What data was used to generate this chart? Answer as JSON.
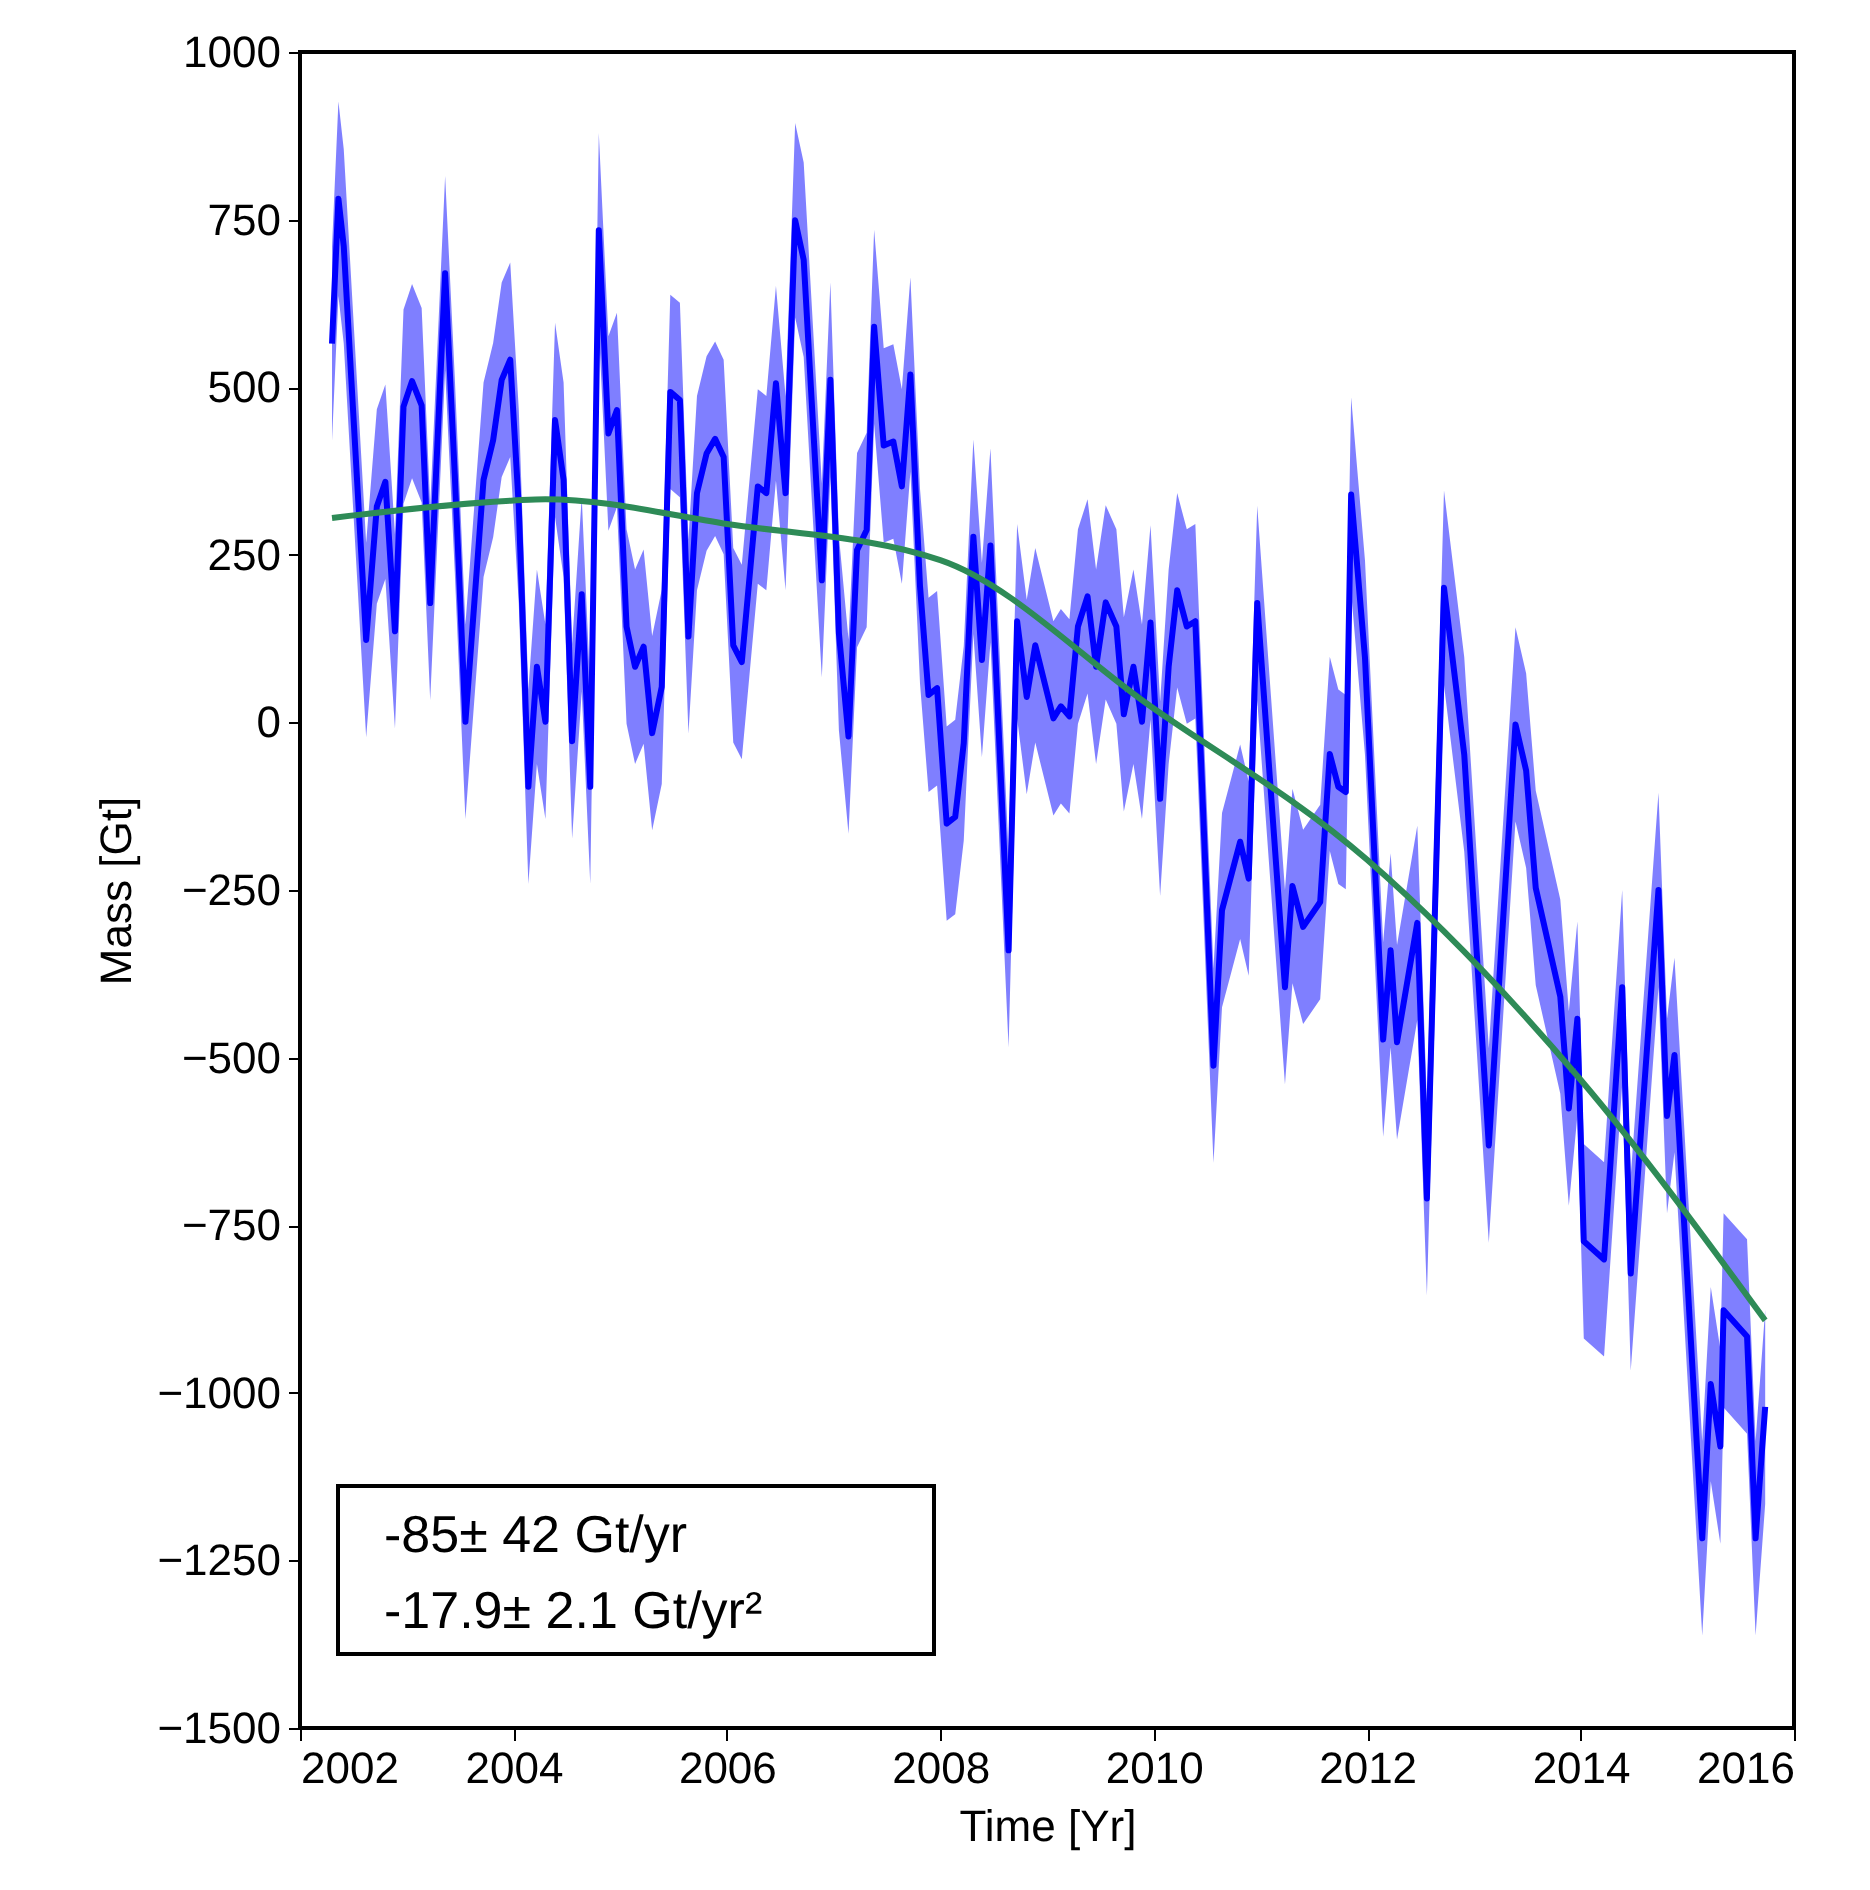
{
  "chart_data": {
    "type": "line",
    "xlabel": "Time [Yr]",
    "ylabel": "Mass [Gt]",
    "xlim": [
      2002,
      2016
    ],
    "xticks": [
      2002,
      2004,
      2006,
      2008,
      2010,
      2012,
      2014,
      2016
    ],
    "ylim": [
      -1500,
      1000
    ],
    "yticks": [
      -1500,
      -1250,
      -1000,
      -750,
      -500,
      -250,
      0,
      250,
      500,
      750,
      1000
    ],
    "grid": false,
    "legend": false,
    "annotations": [
      "-85± 42 Gt/yr",
      "-17.9± 2.1 Gt/yr²"
    ],
    "series": [
      {
        "color": "#0000ff",
        "x": [
          2002.3,
          2002.36,
          2002.41,
          2002.62,
          2002.72,
          2002.8,
          2002.89,
          2002.97,
          2003.05,
          2003.14,
          2003.22,
          2003.36,
          2003.45,
          2003.55,
          2003.72,
          2003.81,
          2003.89,
          2003.97,
          2004.05,
          2004.14,
          2004.22,
          2004.3,
          2004.39,
          2004.47,
          2004.55,
          2004.64,
          2004.72,
          2004.8,
          2004.89,
          2004.97,
          2005.06,
          2005.14,
          2005.22,
          2005.3,
          2005.39,
          2005.47,
          2005.56,
          2005.64,
          2005.72,
          2005.81,
          2005.89,
          2005.97,
          2006.06,
          2006.14,
          2006.29,
          2006.37,
          2006.46,
          2006.55,
          2006.64,
          2006.72,
          2006.89,
          2006.97,
          2007.05,
          2007.14,
          2007.22,
          2007.31,
          2007.38,
          2007.47,
          2007.56,
          2007.64,
          2007.72,
          2007.81,
          2007.89,
          2007.97,
          2008.06,
          2008.14,
          2008.22,
          2008.31,
          2008.39,
          2008.47,
          2008.64,
          2008.72,
          2008.81,
          2008.89,
          2009.06,
          2009.13,
          2009.21,
          2009.29,
          2009.38,
          2009.46,
          2009.55,
          2009.65,
          2009.72,
          2009.81,
          2009.89,
          2009.97,
          2010.06,
          2010.14,
          2010.22,
          2010.31,
          2010.39,
          2010.56,
          2010.64,
          2010.81,
          2010.89,
          2010.97,
          2011.23,
          2011.3,
          2011.4,
          2011.56,
          2011.65,
          2011.73,
          2011.8,
          2011.85,
          2011.98,
          2012.15,
          2012.22,
          2012.28,
          2012.47,
          2012.56,
          2012.72,
          2012.91,
          2013.14,
          2013.39,
          2013.49,
          2013.58,
          2013.81,
          2013.89,
          2013.97,
          2014.03,
          2014.22,
          2014.39,
          2014.47,
          2014.73,
          2014.81,
          2014.88,
          2015.14,
          2015.22,
          2015.31,
          2015.34,
          2015.56,
          2015.64,
          2015.73
        ],
        "values": [
          565,
          781,
          710,
          123,
          322,
          359,
          136,
          471,
          509,
          473,
          178,
          670,
          371,
          1,
          362,
          421,
          511,
          541,
          322,
          -96,
          83,
          1,
          451,
          362,
          -28,
          191,
          -96,
          734,
          431,
          466,
          143,
          83,
          113,
          -16,
          53,
          493,
          481,
          128,
          342,
          401,
          423,
          396,
          115,
          90,
          352,
          342,
          506,
          342,
          749,
          690,
          212,
          511,
          133,
          -21,
          257,
          287,
          590,
          413,
          419,
          352,
          519,
          203,
          41,
          51,
          -151,
          -141,
          -31,
          277,
          93,
          264,
          -340,
          151,
          38,
          115,
          6,
          24,
          9,
          143,
          188,
          83,
          179,
          143,
          12,
          83,
          1,
          149,
          -114,
          83,
          197,
          143,
          151,
          -512,
          -280,
          -178,
          -233,
          178,
          -395,
          -244,
          -305,
          -268,
          -47,
          -96,
          -104,
          340,
          96,
          -473,
          -340,
          -477,
          -299,
          -710,
          201,
          -48,
          -631,
          -3,
          -72,
          -247,
          -409,
          -576,
          -442,
          -774,
          -801,
          -395,
          -822,
          -250,
          -587,
          -496,
          -1217,
          -987,
          -1080,
          -877,
          -916,
          -1217,
          -1021
        ],
        "upper": [
          710,
          926,
          855,
          268,
          467,
          504,
          281,
          616,
          654,
          618,
          323,
          815,
          516,
          146,
          507,
          566,
          656,
          686,
          467,
          49,
          228,
          146,
          596,
          507,
          117,
          336,
          49,
          879,
          576,
          611,
          288,
          228,
          258,
          129,
          198,
          638,
          626,
          273,
          487,
          546,
          568,
          541,
          260,
          235,
          497,
          487,
          651,
          487,
          894,
          835,
          357,
          656,
          278,
          124,
          402,
          432,
          735,
          558,
          564,
          497,
          664,
          348,
          186,
          196,
          -6,
          4,
          114,
          422,
          238,
          409,
          -195,
          296,
          183,
          260,
          151,
          169,
          154,
          288,
          333,
          228,
          324,
          288,
          157,
          228,
          146,
          294,
          31,
          228,
          342,
          288,
          296,
          -367,
          -135,
          -33,
          -88,
          323,
          -250,
          -99,
          -160,
          -123,
          98,
          49,
          41,
          485,
          241,
          -328,
          -195,
          -332,
          -154,
          -565,
          346,
          97,
          -486,
          142,
          73,
          -102,
          -264,
          -431,
          -297,
          -629,
          -656,
          -250,
          -677,
          -105,
          -442,
          -351,
          -1072,
          -842,
          -935,
          -732,
          -771,
          -1072,
          -876
        ],
        "lower": [
          420,
          636,
          565,
          -22,
          177,
          214,
          -9,
          326,
          364,
          328,
          33,
          525,
          226,
          -144,
          217,
          276,
          366,
          396,
          177,
          -241,
          -62,
          -144,
          306,
          217,
          -173,
          46,
          -241,
          589,
          286,
          321,
          -2,
          -62,
          -32,
          -161,
          -92,
          348,
          336,
          -17,
          197,
          256,
          278,
          251,
          -30,
          -55,
          207,
          197,
          361,
          197,
          604,
          545,
          67,
          366,
          -12,
          -166,
          112,
          142,
          445,
          268,
          274,
          207,
          374,
          58,
          -104,
          -94,
          -296,
          -286,
          -176,
          132,
          -52,
          119,
          -485,
          6,
          -107,
          -30,
          -139,
          -121,
          -136,
          -2,
          43,
          -62,
          34,
          -2,
          -133,
          -62,
          -144,
          4,
          -259,
          -62,
          52,
          -2,
          6,
          -657,
          -425,
          -323,
          -378,
          33,
          -540,
          -389,
          -450,
          -413,
          -192,
          -241,
          -249,
          195,
          -49,
          -618,
          -485,
          -622,
          -444,
          -855,
          56,
          -193,
          -776,
          -148,
          -217,
          -392,
          -554,
          -721,
          -587,
          -919,
          -946,
          -540,
          -967,
          -395,
          -732,
          -641,
          -1362,
          -1132,
          -1225,
          -1022,
          -1061,
          -1362,
          -1166
        ]
      },
      {
        "color": "#2e8b57",
        "x": [
          2002.3,
          2004,
          2004.3,
          2006,
          2008,
          2009.97,
          2012,
          2014,
          2015.73
        ],
        "values": [
          305,
          331,
          333,
          296,
          242,
          24,
          -205,
          -533,
          -892
        ]
      }
    ]
  }
}
